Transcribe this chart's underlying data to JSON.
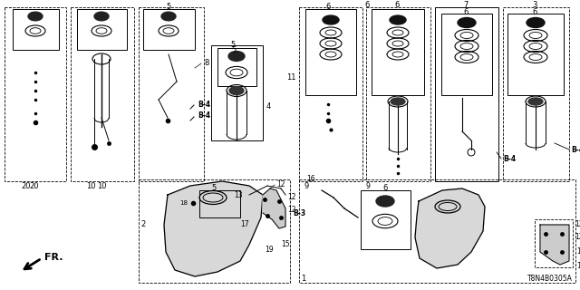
{
  "bg_color": "#ffffff",
  "diagram_code": "T8N4B0305A",
  "arrow_label": "FR.",
  "figsize": [
    6.4,
    3.2
  ],
  "dpi": 100
}
